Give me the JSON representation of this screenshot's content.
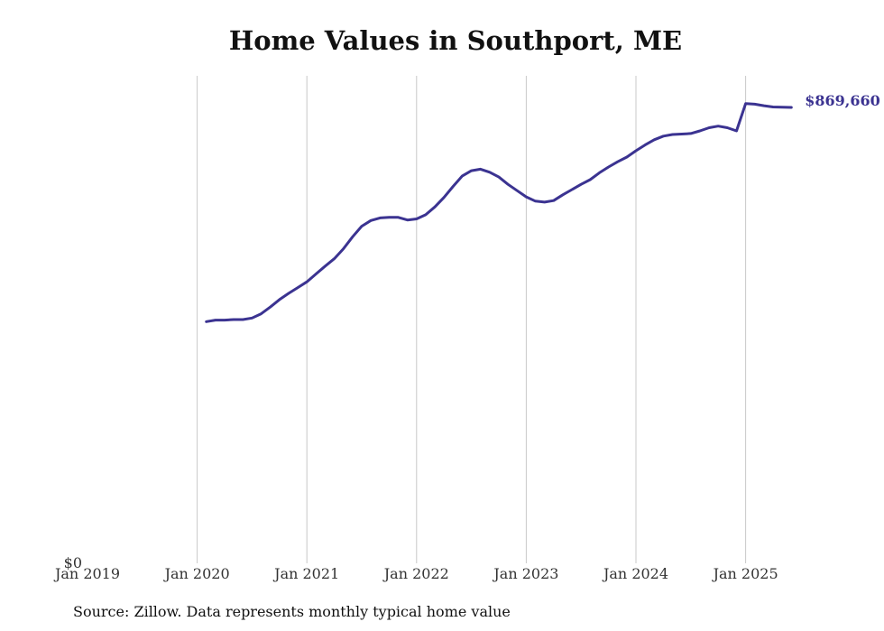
{
  "chart_data": {
    "type": "line",
    "title": "Home Values in Southport, ME",
    "source": "Source: Zillow. Data represents monthly typical home value",
    "ylim": [
      0,
      930000
    ],
    "y_tick_label": "$0",
    "x_ticks": [
      {
        "date": "2019-01",
        "label": "Jan 2019"
      },
      {
        "date": "2020-01",
        "label": "Jan 2020"
      },
      {
        "date": "2021-01",
        "label": "Jan 2021"
      },
      {
        "date": "2022-01",
        "label": "Jan 2022"
      },
      {
        "date": "2023-01",
        "label": "Jan 2023"
      },
      {
        "date": "2024-01",
        "label": "Jan 2024"
      },
      {
        "date": "2025-01",
        "label": "Jan 2025"
      }
    ],
    "grid": "vertical",
    "line_color": "#3b3391",
    "end_label": "$869,660",
    "series": [
      {
        "x": [
          "2020-02",
          "2020-03",
          "2020-04",
          "2020-05",
          "2020-06",
          "2020-07",
          "2020-08",
          "2020-09",
          "2020-10",
          "2020-11",
          "2020-12",
          "2021-01",
          "2021-02",
          "2021-03",
          "2021-04",
          "2021-05",
          "2021-06",
          "2021-07",
          "2021-08",
          "2021-09",
          "2021-10",
          "2021-11",
          "2021-12",
          "2022-01",
          "2022-02",
          "2022-03",
          "2022-04",
          "2022-05",
          "2022-06",
          "2022-07",
          "2022-08",
          "2022-09",
          "2022-10",
          "2022-11",
          "2022-12",
          "2023-01",
          "2023-02",
          "2023-03",
          "2023-04",
          "2023-05",
          "2023-06",
          "2023-07",
          "2023-08",
          "2023-09",
          "2023-10",
          "2023-11",
          "2023-12",
          "2024-01",
          "2024-02",
          "2024-03",
          "2024-04",
          "2024-05",
          "2024-06",
          "2024-07",
          "2024-08",
          "2024-09",
          "2024-10",
          "2024-11",
          "2024-12",
          "2025-01",
          "2025-02",
          "2025-03",
          "2025-04",
          "2025-05",
          "2025-06"
        ],
        "values": [
          461000,
          464000,
          464000,
          465000,
          465000,
          468000,
          476000,
          489000,
          503000,
          515000,
          526000,
          537000,
          552000,
          567000,
          581000,
          600000,
          623000,
          643000,
          654000,
          659000,
          660000,
          660000,
          655000,
          657000,
          665000,
          680000,
          698000,
          719000,
          739000,
          749000,
          752000,
          746000,
          737000,
          723000,
          711000,
          699000,
          691000,
          689000,
          692000,
          703000,
          713000,
          723000,
          732000,
          745000,
          756000,
          766000,
          775000,
          787000,
          798000,
          808000,
          815000,
          818000,
          819000,
          820000,
          825000,
          831000,
          834000,
          831000,
          825000,
          877000,
          876000,
          873000,
          870500,
          870000,
          869660
        ]
      }
    ]
  }
}
